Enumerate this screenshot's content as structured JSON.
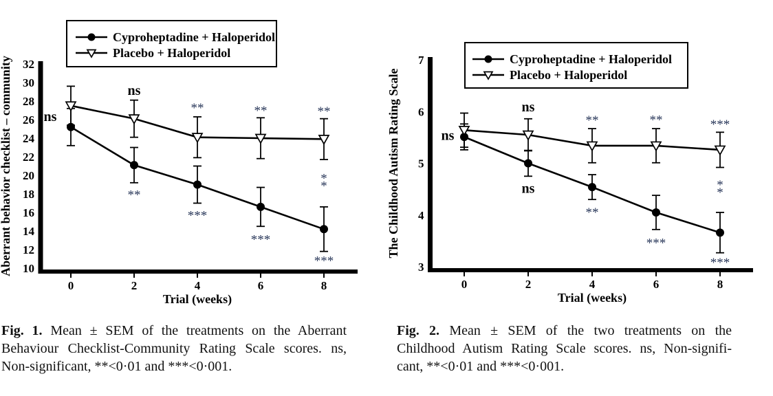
{
  "page": {
    "background": "#ffffff",
    "star_color": "#2c3a5c"
  },
  "figures": [
    {
      "caption": {
        "label": "Fig. 1.",
        "line1": "Mean ± SEM of the treatments on the Aberrant",
        "line2": "Behaviour Checklist-Community Rating Scale scores. ns,",
        "line3": "Non-significant, **<0·01 and ***<0·001."
      }
    },
    {
      "caption": {
        "label": "Fig. 2.",
        "line1": "Mean ± SEM of the two treatments on the",
        "line2": "Childhood Autism Rating Scale scores. ns, Non-signifi-",
        "line3": "cant, **<0·01 and ***<0·001."
      }
    }
  ],
  "chart_data": [
    {
      "type": "line",
      "title": "",
      "xlabel": "Trial (weeks)",
      "ylabel": "Aberrant behavior checklist – community",
      "x": [
        0,
        2,
        4,
        6,
        8
      ],
      "ylim": [
        10,
        32
      ],
      "yticks": [
        10,
        12,
        14,
        16,
        18,
        20,
        22,
        24,
        26,
        28,
        30,
        32
      ],
      "grid": false,
      "legend_position": "top-center",
      "series": [
        {
          "name": "Cyproheptadine + Haloperidol",
          "marker": "filled-circle",
          "values": [
            25.2,
            21.1,
            19.0,
            16.6,
            14.2
          ],
          "sem": [
            2.0,
            1.9,
            2.0,
            2.1,
            2.4
          ]
        },
        {
          "name": "Placebo + Haloperidol",
          "marker": "open-triangle-down",
          "values": [
            27.5,
            26.1,
            24.1,
            24.0,
            23.9
          ],
          "sem": [
            2.1,
            2.0,
            2.2,
            2.2,
            2.2
          ]
        }
      ],
      "annotations": [
        {
          "text": "ns",
          "x": 0,
          "y": 26.3,
          "dx": -30,
          "style": "ns"
        },
        {
          "text": "ns",
          "x": 2,
          "y": 29.1,
          "style": "ns"
        },
        {
          "text": "**",
          "x": 4,
          "y": 27.5,
          "style": "stars"
        },
        {
          "text": "**",
          "x": 6,
          "y": 27.2,
          "style": "stars"
        },
        {
          "text": "**",
          "x": 8,
          "y": 27.1,
          "style": "stars"
        },
        {
          "text": "**",
          "x": 2,
          "y": 18.1,
          "style": "stars"
        },
        {
          "text": "***",
          "x": 4,
          "y": 15.9,
          "style": "stars"
        },
        {
          "text": "***",
          "x": 6,
          "y": 13.3,
          "style": "stars"
        },
        {
          "text": "***",
          "x": 8,
          "y": 11.0,
          "style": "stars"
        },
        {
          "text": "**",
          "x": 8,
          "y": 19.5,
          "style": "stars",
          "orientation": "vertical"
        }
      ]
    },
    {
      "type": "line",
      "title": "",
      "xlabel": "Trial (weeks)",
      "ylabel": "The Childhood Autism Rating Scale",
      "x": [
        0,
        2,
        4,
        6,
        8
      ],
      "ylim": [
        3,
        7
      ],
      "yticks": [
        3,
        4,
        5,
        6,
        7
      ],
      "grid": false,
      "legend_position": "top-center",
      "series": [
        {
          "name": "Cyproheptadine + Haloperidol",
          "marker": "filled-circle",
          "values": [
            5.51,
            5.0,
            4.54,
            4.05,
            3.66
          ],
          "sem": [
            0.25,
            0.25,
            0.24,
            0.33,
            0.39
          ]
        },
        {
          "name": "Placebo + Haloperidol",
          "marker": "open-triangle-down",
          "values": [
            5.64,
            5.55,
            5.34,
            5.34,
            5.26
          ],
          "sem": [
            0.33,
            0.31,
            0.33,
            0.33,
            0.34
          ]
        }
      ],
      "annotations": [
        {
          "text": "ns",
          "x": 0,
          "y": 5.53,
          "dx": -24,
          "style": "ns"
        },
        {
          "text": "ns",
          "x": 2,
          "y": 6.08,
          "style": "ns"
        },
        {
          "text": "**",
          "x": 4,
          "y": 5.87,
          "style": "stars"
        },
        {
          "text": "**",
          "x": 6,
          "y": 5.88,
          "style": "stars"
        },
        {
          "text": "***",
          "x": 8,
          "y": 5.79,
          "style": "stars"
        },
        {
          "text": "ns",
          "x": 2,
          "y": 4.51,
          "style": "ns"
        },
        {
          "text": "**",
          "x": 4,
          "y": 4.09,
          "style": "stars"
        },
        {
          "text": "***",
          "x": 6,
          "y": 3.5,
          "style": "stars"
        },
        {
          "text": "***",
          "x": 8,
          "y": 3.12,
          "style": "stars"
        },
        {
          "text": "**",
          "x": 8,
          "y": 4.55,
          "style": "stars",
          "orientation": "vertical"
        }
      ]
    }
  ]
}
